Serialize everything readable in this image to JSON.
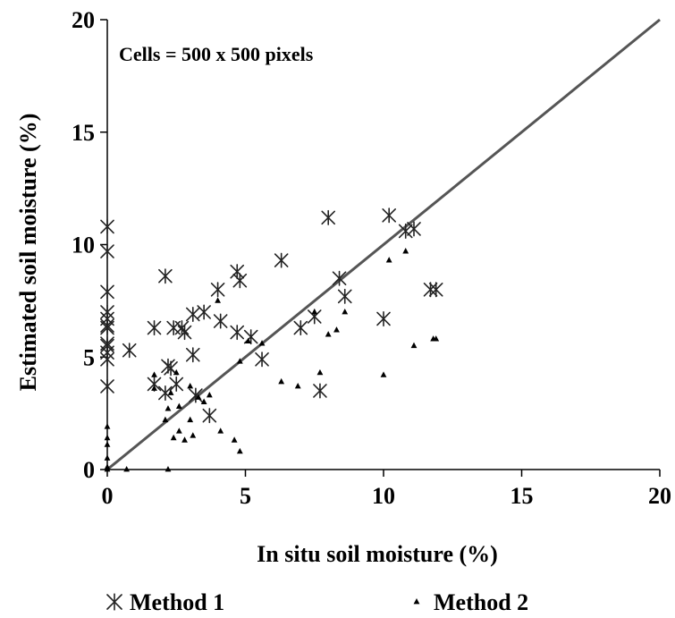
{
  "chart_data": {
    "type": "scatter",
    "title": "",
    "xlabel": "In situ soil moisture (%)",
    "ylabel": "Estimated soil moisture (%)",
    "xlim": [
      0,
      20
    ],
    "ylim": [
      0,
      20
    ],
    "xticks": [
      "0",
      "5",
      "10",
      "15",
      "20"
    ],
    "yticks": [
      "0",
      "5",
      "10",
      "15",
      "20"
    ],
    "annotation": "Cells = 500 x 500 pixels",
    "reference_line": {
      "x": [
        0,
        20
      ],
      "y": [
        0,
        20
      ]
    },
    "grid": false,
    "legend_position": "bottom",
    "series": [
      {
        "name": "Method 1",
        "marker": "asterisk",
        "points": [
          [
            0,
            10.8
          ],
          [
            0,
            9.7
          ],
          [
            0,
            7.9
          ],
          [
            0,
            7.0
          ],
          [
            0,
            6.7
          ],
          [
            0,
            6.4
          ],
          [
            0,
            6.3
          ],
          [
            0,
            5.6
          ],
          [
            0,
            5.5
          ],
          [
            0,
            5.2
          ],
          [
            0,
            4.9
          ],
          [
            0,
            3.7
          ],
          [
            0.8,
            5.3
          ],
          [
            1.7,
            6.3
          ],
          [
            1.7,
            3.8
          ],
          [
            2.1,
            8.6
          ],
          [
            2.2,
            4.6
          ],
          [
            2.1,
            3.4
          ],
          [
            2.3,
            4.5
          ],
          [
            2.4,
            6.3
          ],
          [
            2.5,
            3.8
          ],
          [
            2.7,
            6.3
          ],
          [
            2.8,
            6.1
          ],
          [
            3.1,
            6.9
          ],
          [
            3.1,
            5.1
          ],
          [
            3.2,
            3.3
          ],
          [
            3.5,
            7.0
          ],
          [
            3.7,
            2.4
          ],
          [
            4.0,
            8.0
          ],
          [
            4.1,
            6.6
          ],
          [
            4.7,
            6.1
          ],
          [
            4.7,
            8.8
          ],
          [
            4.8,
            8.4
          ],
          [
            5.2,
            5.9
          ],
          [
            5.6,
            4.9
          ],
          [
            6.3,
            9.3
          ],
          [
            7.0,
            6.3
          ],
          [
            7.5,
            6.8
          ],
          [
            7.7,
            3.5
          ],
          [
            8.0,
            11.2
          ],
          [
            8.4,
            8.5
          ],
          [
            8.6,
            7.7
          ],
          [
            10.0,
            6.7
          ],
          [
            10.2,
            11.3
          ],
          [
            10.8,
            10.6
          ],
          [
            11.1,
            10.7
          ],
          [
            11.7,
            8.0
          ],
          [
            11.9,
            8.0
          ]
        ]
      },
      {
        "name": "Method 2",
        "marker": "triangle",
        "points": [
          [
            0,
            1.9
          ],
          [
            0,
            1.4
          ],
          [
            0,
            1.1
          ],
          [
            0,
            0.5
          ],
          [
            0,
            0.1
          ],
          [
            0,
            0.0
          ],
          [
            0.7,
            0.0
          ],
          [
            1.7,
            4.2
          ],
          [
            1.7,
            3.6
          ],
          [
            2.1,
            2.2
          ],
          [
            2.2,
            0.0
          ],
          [
            2.2,
            2.7
          ],
          [
            2.3,
            3.4
          ],
          [
            2.4,
            1.4
          ],
          [
            2.5,
            4.3
          ],
          [
            2.6,
            2.8
          ],
          [
            2.6,
            1.7
          ],
          [
            2.8,
            1.3
          ],
          [
            3.0,
            3.7
          ],
          [
            3.0,
            2.2
          ],
          [
            3.1,
            1.5
          ],
          [
            3.3,
            3.2
          ],
          [
            3.5,
            3.0
          ],
          [
            3.7,
            3.3
          ],
          [
            4.0,
            7.5
          ],
          [
            4.1,
            1.7
          ],
          [
            4.6,
            1.3
          ],
          [
            4.8,
            4.8
          ],
          [
            4.8,
            0.8
          ],
          [
            5.1,
            5.7
          ],
          [
            5.6,
            5.6
          ],
          [
            6.3,
            3.9
          ],
          [
            6.9,
            3.7
          ],
          [
            7.5,
            7.0
          ],
          [
            7.7,
            4.3
          ],
          [
            8.0,
            6.0
          ],
          [
            8.3,
            6.2
          ],
          [
            8.6,
            7.0
          ],
          [
            10.0,
            4.2
          ],
          [
            10.2,
            9.3
          ],
          [
            10.8,
            9.7
          ],
          [
            11.1,
            5.5
          ],
          [
            11.8,
            5.8
          ],
          [
            11.9,
            5.8
          ]
        ]
      }
    ]
  }
}
